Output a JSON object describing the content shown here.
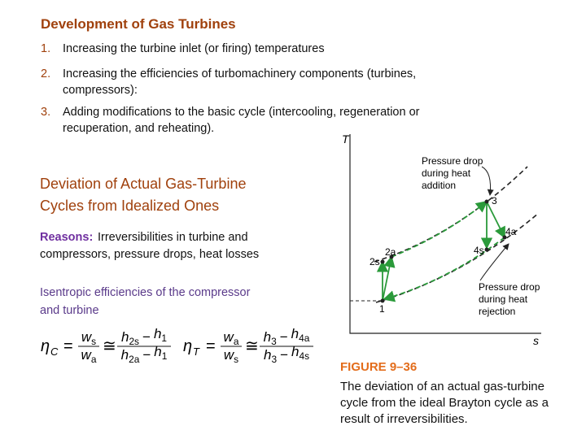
{
  "header": {
    "title": "Development of Gas Turbines"
  },
  "list": [
    {
      "number": "1.",
      "lines": [
        "Increasing the turbine inlet (or firing) temperatures"
      ]
    },
    {
      "number": "2.",
      "lines": [
        "Increasing the efficiencies of turbomachinery components (turbines,",
        "compressors):"
      ]
    },
    {
      "number": "3.",
      "lines": [
        "Adding modifications to the basic cycle (intercooling, regeneration or",
        "recuperation, and reheating)."
      ]
    }
  ],
  "section": {
    "title_lines": [
      "Deviation of Actual Gas-Turbine",
      "Cycles from Idealized Ones"
    ],
    "reasons_label": "Reasons:",
    "reasons_lines": [
      "Irreversibilities in turbine and",
      "compressors, pressure drops, heat losses"
    ],
    "isentropic_lines": [
      "Isentropic efficiencies of the compressor",
      "and turbine"
    ]
  },
  "formulas": [
    {
      "lhs": "η",
      "lhs_sub": "C",
      "eq": "=",
      "frac1": {
        "num": [
          "w",
          "s"
        ],
        "den": [
          "w",
          "a"
        ]
      },
      "approx": "≅",
      "frac2": {
        "num": [
          "h",
          "2s",
          "−",
          "h",
          "1"
        ],
        "den": [
          "h",
          "2a",
          "−",
          "h",
          "1"
        ]
      }
    },
    {
      "lhs": "η",
      "lhs_sub": "T",
      "eq": "=",
      "frac1": {
        "num": [
          "w",
          "a"
        ],
        "den": [
          "w",
          "s"
        ]
      },
      "approx": "≅",
      "frac2": {
        "num": [
          "h",
          "3",
          "−",
          "h",
          "4a"
        ],
        "den": [
          "h",
          "3",
          "−",
          "h",
          "4s"
        ]
      }
    }
  ],
  "figure": {
    "axis_t": "T",
    "axis_s": "s",
    "label_addition": [
      "Pressure drop",
      "during heat",
      "addition"
    ],
    "label_rejection": [
      "Pressure drop",
      "during heat",
      "rejection"
    ],
    "points": [
      "1",
      "2s",
      "2a",
      "3",
      "4s",
      "4a"
    ],
    "caption_title": "FIGURE 9–36",
    "caption_lines": [
      "The deviation of an actual gas-turbine",
      "cycle from the ideal Brayton cycle as a",
      "result of irreversibilities."
    ]
  }
}
